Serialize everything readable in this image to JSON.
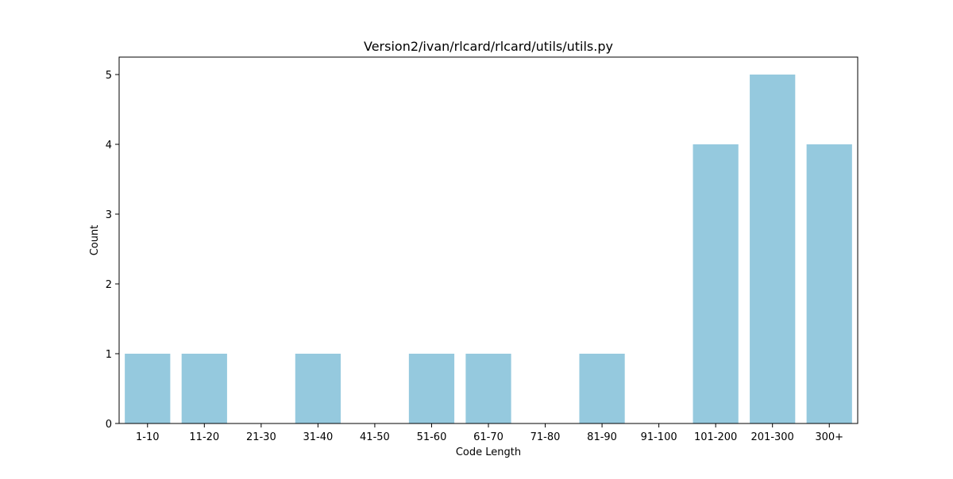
{
  "chart_data": {
    "type": "bar",
    "title": "Version2/ivan/rlcard/rlcard/utils/utils.py",
    "xlabel": "Code Length",
    "ylabel": "Count",
    "categories": [
      "1-10",
      "11-20",
      "21-30",
      "31-40",
      "41-50",
      "51-60",
      "61-70",
      "71-80",
      "81-90",
      "91-100",
      "101-200",
      "201-300",
      "300+"
    ],
    "values": [
      1,
      1,
      0,
      1,
      0,
      1,
      1,
      0,
      1,
      0,
      4,
      5,
      4
    ],
    "ylim": [
      0,
      5.25
    ],
    "yticks": [
      0,
      1,
      2,
      3,
      4,
      5
    ],
    "bar_color": "#95c9de",
    "grid": false,
    "legend": "none"
  }
}
